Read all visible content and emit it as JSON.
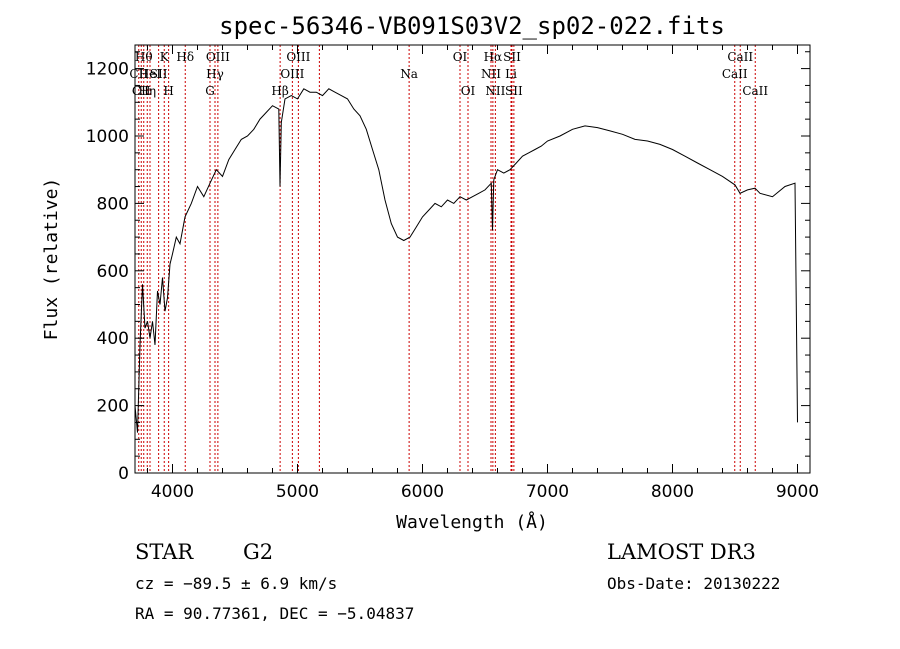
{
  "chart_data": {
    "type": "line",
    "title": "spec-56346-VB091S03V2_sp02-022.fits",
    "xlabel": "Wavelength (Å)",
    "ylabel": "Flux (relative)",
    "xlim": [
      3700,
      9100
    ],
    "ylim": [
      0,
      1270
    ],
    "xticks": [
      4000,
      5000,
      6000,
      7000,
      8000,
      9000
    ],
    "yticks": [
      0,
      200,
      400,
      600,
      800,
      1000,
      1200
    ],
    "grid": false,
    "series": [
      {
        "x": [
          3700,
          3720,
          3740,
          3760,
          3780,
          3800,
          3820,
          3840,
          3860,
          3880,
          3900,
          3920,
          3940,
          3960,
          3980,
          4000,
          4030,
          4060,
          4100,
          4150,
          4200,
          4250,
          4300,
          4350,
          4400,
          4450,
          4500,
          4550,
          4600,
          4650,
          4700,
          4750,
          4800,
          4850,
          4860,
          4870,
          4900,
          4950,
          5000,
          5050,
          5100,
          5150,
          5200,
          5250,
          5300,
          5350,
          5400,
          5450,
          5500,
          5550,
          5600,
          5650,
          5700,
          5750,
          5800,
          5850,
          5900,
          5950,
          6000,
          6050,
          6100,
          6150,
          6200,
          6250,
          6300,
          6350,
          6400,
          6450,
          6500,
          6550,
          6560,
          6570,
          6600,
          6650,
          6700,
          6750,
          6800,
          6850,
          6900,
          6950,
          7000,
          7100,
          7200,
          7300,
          7400,
          7500,
          7600,
          7700,
          7800,
          7900,
          8000,
          8100,
          8200,
          8300,
          8400,
          8500,
          8540,
          8600,
          8660,
          8700,
          8800,
          8900,
          8980,
          9000
        ],
        "y": [
          200,
          120,
          380,
          560,
          430,
          450,
          400,
          450,
          380,
          540,
          500,
          580,
          480,
          520,
          620,
          650,
          700,
          680,
          760,
          800,
          850,
          820,
          860,
          900,
          880,
          930,
          960,
          990,
          1000,
          1020,
          1050,
          1070,
          1090,
          1080,
          850,
          1040,
          1110,
          1120,
          1110,
          1140,
          1130,
          1130,
          1120,
          1140,
          1130,
          1120,
          1110,
          1080,
          1060,
          1020,
          960,
          900,
          810,
          740,
          700,
          690,
          700,
          730,
          760,
          780,
          800,
          790,
          810,
          800,
          820,
          810,
          820,
          830,
          840,
          860,
          720,
          870,
          900,
          890,
          900,
          920,
          940,
          950,
          960,
          970,
          985,
          1000,
          1020,
          1030,
          1025,
          1015,
          1005,
          990,
          985,
          975,
          960,
          940,
          920,
          900,
          880,
          855,
          830,
          840,
          845,
          830,
          820,
          850,
          860,
          150
        ]
      }
    ],
    "line_markers": [
      {
        "wl": 3730,
        "label": "CII",
        "row": 1
      },
      {
        "wl": 3750,
        "label": "CII",
        "row": 2
      },
      {
        "wl": 3770,
        "label": "Hθ",
        "row": 0
      },
      {
        "wl": 3798,
        "label": "Hη",
        "row": 2
      },
      {
        "wl": 3820,
        "label": "HeI",
        "row": 1
      },
      {
        "wl": 3889,
        "label": "SII",
        "row": 1
      },
      {
        "wl": 3934,
        "label": "K",
        "row": 0
      },
      {
        "wl": 3969,
        "label": "H",
        "row": 2
      },
      {
        "wl": 4102,
        "label": "Hδ",
        "row": 0
      },
      {
        "wl": 4300,
        "label": "G",
        "row": 2
      },
      {
        "wl": 4340,
        "label": "Hγ",
        "row": 1
      },
      {
        "wl": 4363,
        "label": "OIII",
        "row": 0
      },
      {
        "wl": 4861,
        "label": "Hβ",
        "row": 2
      },
      {
        "wl": 4959,
        "label": "OIII",
        "row": 1
      },
      {
        "wl": 5007,
        "label": "OIII",
        "row": 0
      },
      {
        "wl": 5175,
        "label": "",
        "row": 0
      },
      {
        "wl": 5893,
        "label": "Na",
        "row": 1
      },
      {
        "wl": 6300,
        "label": "OI",
        "row": 0
      },
      {
        "wl": 6364,
        "label": "OI",
        "row": 2
      },
      {
        "wl": 6548,
        "label": "NII",
        "row": 1
      },
      {
        "wl": 6563,
        "label": "Hα",
        "row": 0
      },
      {
        "wl": 6583,
        "label": "NII",
        "row": 2
      },
      {
        "wl": 6708,
        "label": "Li",
        "row": 1
      },
      {
        "wl": 6716,
        "label": "SII",
        "row": 0
      },
      {
        "wl": 6731,
        "label": "SII",
        "row": 2
      },
      {
        "wl": 8498,
        "label": "CaII",
        "row": 1
      },
      {
        "wl": 8542,
        "label": "CaII",
        "row": 0
      },
      {
        "wl": 8662,
        "label": "CaII",
        "row": 2
      }
    ]
  },
  "info": {
    "obj_class": "STAR",
    "subclass": "G2",
    "survey": "LAMOST DR3",
    "cz": "cz = −89.5 ± 6.9 km/s",
    "obs_date": "Obs-Date: 20130222",
    "coords": "RA =  90.77361, DEC =  −5.04837"
  }
}
